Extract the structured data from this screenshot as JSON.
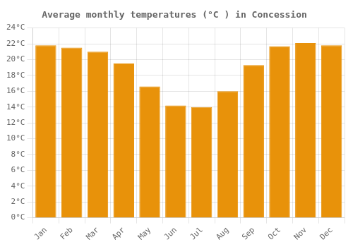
{
  "chart_data": {
    "type": "bar",
    "title": "Average monthly temperatures (°C ) in Concession",
    "categories": [
      "Jan",
      "Feb",
      "Mar",
      "Apr",
      "May",
      "Jun",
      "Jul",
      "Aug",
      "Sep",
      "Oct",
      "Nov",
      "Dec"
    ],
    "values": [
      21.8,
      21.5,
      21.0,
      19.5,
      16.6,
      14.2,
      14.0,
      16.0,
      19.3,
      21.7,
      22.1,
      21.8
    ],
    "color": "#E8920A",
    "ylim": [
      0,
      24
    ],
    "yticks": [
      {
        "value": 0,
        "label": "0°C"
      },
      {
        "value": 2,
        "label": "2°C"
      },
      {
        "value": 4,
        "label": "4°C"
      },
      {
        "value": 6,
        "label": "6°C"
      },
      {
        "value": 8,
        "label": "8°C"
      },
      {
        "value": 10,
        "label": "10°C"
      },
      {
        "value": 12,
        "label": "12°C"
      },
      {
        "value": 14,
        "label": "14°C"
      },
      {
        "value": 16,
        "label": "16°C"
      },
      {
        "value": 18,
        "label": "18°C"
      },
      {
        "value": 20,
        "label": "20°C"
      },
      {
        "value": 22,
        "label": "22°C"
      },
      {
        "value": 24,
        "label": "24°C"
      }
    ],
    "grid": true
  }
}
